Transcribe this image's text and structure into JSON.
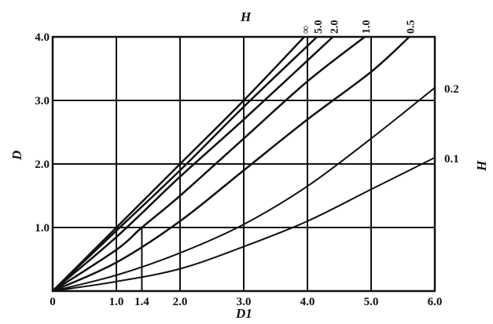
{
  "chart_data": {
    "type": "line",
    "xlabel": "D1",
    "ylabel": "D",
    "legend_title": "H",
    "xlim": [
      0,
      6.0
    ],
    "ylim": [
      0,
      4.0
    ],
    "grid": true,
    "x_ticks": [
      "0",
      "1.0",
      "1.4",
      "2.0",
      "3.0",
      "4.0",
      "5.0",
      "6.0"
    ],
    "x_tick_values": [
      0,
      1.0,
      1.4,
      2.0,
      3.0,
      4.0,
      5.0,
      6.0
    ],
    "y_ticks": [
      "1.0",
      "2.0",
      "3.0",
      "4.0"
    ],
    "y_tick_values": [
      1.0,
      2.0,
      3.0,
      4.0
    ],
    "guide": {
      "x": 1.4,
      "y": 1.0
    },
    "series": [
      {
        "name": "∞",
        "points": [
          [
            0,
            0
          ],
          [
            1,
            1
          ],
          [
            2,
            2
          ],
          [
            3,
            3
          ],
          [
            3.95,
            4
          ]
        ]
      },
      {
        "name": "5.0",
        "points": [
          [
            0,
            0
          ],
          [
            1,
            0.95
          ],
          [
            2,
            1.9
          ],
          [
            3,
            2.9
          ],
          [
            4.15,
            4
          ]
        ]
      },
      {
        "name": "2.0",
        "points": [
          [
            0,
            0
          ],
          [
            1,
            0.85
          ],
          [
            2,
            1.8
          ],
          [
            3,
            2.7
          ],
          [
            4.4,
            4
          ]
        ]
      },
      {
        "name": "1.0",
        "points": [
          [
            0,
            0
          ],
          [
            1,
            0.65
          ],
          [
            1.4,
            1.0
          ],
          [
            2,
            1.5
          ],
          [
            3,
            2.4
          ],
          [
            4,
            3.3
          ],
          [
            4.9,
            4
          ]
        ]
      },
      {
        "name": "0.5",
        "points": [
          [
            0,
            0
          ],
          [
            1,
            0.45
          ],
          [
            2,
            1.1
          ],
          [
            3,
            1.9
          ],
          [
            4,
            2.7
          ],
          [
            5,
            3.45
          ],
          [
            5.6,
            4
          ]
        ]
      },
      {
        "name": "0.2",
        "points": [
          [
            0,
            0
          ],
          [
            1,
            0.25
          ],
          [
            2,
            0.6
          ],
          [
            3,
            1.05
          ],
          [
            4,
            1.65
          ],
          [
            5,
            2.4
          ],
          [
            6,
            3.2
          ]
        ]
      },
      {
        "name": "0.1",
        "points": [
          [
            0,
            0
          ],
          [
            1,
            0.15
          ],
          [
            2,
            0.35
          ],
          [
            3,
            0.7
          ],
          [
            4,
            1.1
          ],
          [
            5,
            1.6
          ],
          [
            6,
            2.1
          ]
        ]
      }
    ]
  }
}
